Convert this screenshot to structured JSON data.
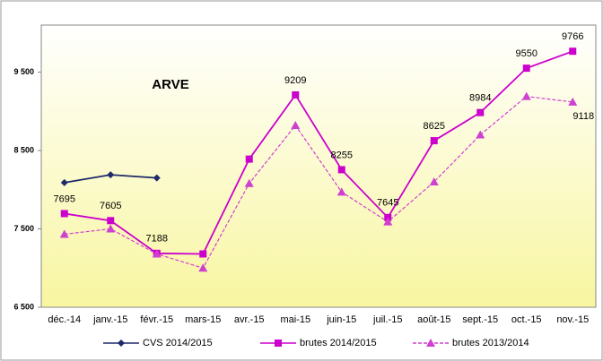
{
  "chart_data": {
    "type": "line",
    "title": "ARVE",
    "categories": [
      "déc.-14",
      "janv.-15",
      "févr.-15",
      "mars-15",
      "avr.-15",
      "mai-15",
      "juin-15",
      "juil.-15",
      "août-15",
      "sept.-15",
      "oct.-15",
      "nov.-15"
    ],
    "series": [
      {
        "name": "CVS 2014/2015",
        "color": "#1f2a6b",
        "marker": "diamond",
        "dash": "solid",
        "values": [
          8090,
          8190,
          8150,
          null,
          null,
          null,
          null,
          null,
          null,
          null,
          null,
          null
        ]
      },
      {
        "name": "brutes 2014/2015",
        "color": "#cc00cc",
        "marker": "square",
        "dash": "solid",
        "values": [
          7695,
          7605,
          7188,
          7180,
          8390,
          9209,
          8255,
          7645,
          8625,
          8984,
          9550,
          9766
        ],
        "value_labels": [
          "7695",
          "7605",
          "7188",
          null,
          null,
          "9209",
          "8255",
          "7645",
          "8625",
          "8984",
          "9550",
          "9766"
        ]
      },
      {
        "name": "brutes 2013/2014",
        "color": "#d040d0",
        "marker": "triangle",
        "dash": "dashed",
        "values": [
          7432,
          7500,
          7180,
          7000,
          8080,
          8820,
          7970,
          7590,
          8100,
          8700,
          9190,
          9118
        ],
        "value_labels": [
          null,
          null,
          null,
          null,
          null,
          null,
          null,
          null,
          null,
          null,
          null,
          "9118"
        ]
      }
    ],
    "ylim": [
      6500,
      10100
    ],
    "yticks": [
      {
        "value": 6500,
        "label": "6 500"
      },
      {
        "value": 7500,
        "label": "7 500"
      },
      {
        "value": 8500,
        "label": "8 500"
      },
      {
        "value": 9500,
        "label": "9 500"
      }
    ],
    "grid": false,
    "legend": "bottom"
  }
}
